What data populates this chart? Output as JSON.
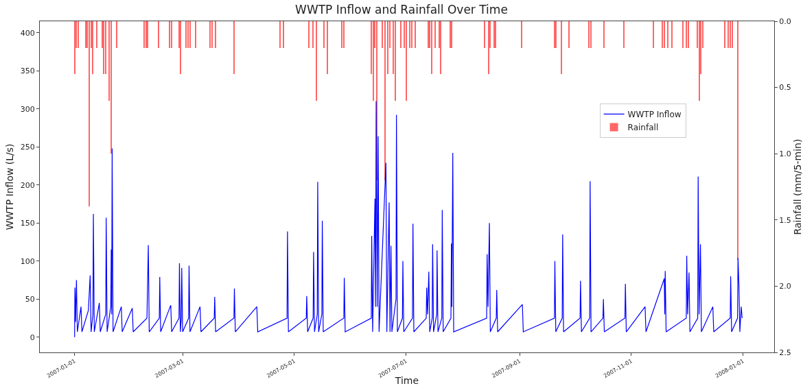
{
  "chart_data": {
    "type": "line",
    "title": "WWTP Inflow and Rainfall Over Time",
    "xlabel": "Time",
    "ylabel": "WWTP Inflow (L/s)",
    "y2label": "Rainfall (mm/5-min)",
    "xlim": [
      "2006-12-13",
      "2008-01-18"
    ],
    "xticks": [
      "2007-01-01",
      "2007-03-01",
      "2007-05-01",
      "2007-07-01",
      "2007-09-01",
      "2007-11-01",
      "2008-01-01"
    ],
    "ylim": [
      -20,
      415
    ],
    "yticks": [
      0,
      50,
      100,
      150,
      200,
      250,
      300,
      350,
      400
    ],
    "y2lim": [
      2.5,
      0
    ],
    "y2ticks": [
      {
        "value": 0,
        "label": "0.0"
      },
      {
        "value": 0.5,
        "label": "0.5"
      },
      {
        "value": 1,
        "label": "1.0"
      },
      {
        "value": 1.5,
        "label": "1.5"
      },
      {
        "value": 2,
        "label": "2.0"
      },
      {
        "value": 2.5,
        "label": "2.5"
      }
    ],
    "grid": false,
    "legend": "right",
    "marker": "none",
    "line_style": "solid",
    "series": [
      {
        "name": "WWTP Inflow",
        "color": "#0000ff",
        "x": [
          "2007-01-01T00:00",
          "2007-01-01T04:00",
          "2007-01-01T12:00",
          "2007-01-02T00:00",
          "2007-01-02T12:00",
          "2007-01-04T12:00",
          "2007-01-05T00:00",
          "2007-01-08T12:00",
          "2007-01-09T12:00",
          "2007-01-10T00:00",
          "2007-01-11T00:00",
          "2007-01-11T06:00",
          "2007-01-11T18:00",
          "2007-01-14T12:00",
          "2007-01-15T00:00",
          "2007-01-18T00:00",
          "2007-01-18T06:00",
          "2007-01-18T18:00",
          "2007-01-20T18:00",
          "2007-01-21T00:00",
          "2007-01-21T06:00",
          "2007-01-21T12:00",
          "2007-01-22T00:00",
          "2007-01-26T12:00",
          "2007-01-27T00:00",
          "2007-02-01T12:00",
          "2007-02-02T00:00",
          "2007-02-09T12:00",
          "2007-02-10T06:00",
          "2007-02-10T18:00",
          "2007-02-16T06:00",
          "2007-02-16T12:00",
          "2007-02-17T00:00",
          "2007-02-22T12:00",
          "2007-02-23T00:00",
          "2007-02-27T00:00",
          "2007-02-27T06:00",
          "2007-02-27T18:00",
          "2007-02-28T06:00",
          "2007-02-28T12:00",
          "2007-03-01T00:00",
          "2007-03-04T06:00",
          "2007-03-04T12:00",
          "2007-03-05T00:00",
          "2007-03-10T12:00",
          "2007-03-11T00:00",
          "2007-03-18T06:00",
          "2007-03-18T12:00",
          "2007-03-19T00:00",
          "2007-03-29T00:00",
          "2007-03-29T06:00",
          "2007-03-29T18:00",
          "2007-04-10T12:00",
          "2007-04-11T00:00",
          "2007-04-27T00:00",
          "2007-04-27T06:00",
          "2007-04-27T18:00",
          "2007-05-07T12:00",
          "2007-05-07T18:00",
          "2007-05-08T06:00",
          "2007-05-11T06:00",
          "2007-05-11T12:00",
          "2007-05-12T00:00",
          "2007-05-13T12:00",
          "2007-05-13T18:00",
          "2007-05-14T06:00",
          "2007-05-16T00:00",
          "2007-05-16T06:00",
          "2007-05-16T18:00",
          "2007-05-28T00:00",
          "2007-05-28T06:00",
          "2007-05-28T18:00",
          "2007-06-12T00:00",
          "2007-06-12T06:00",
          "2007-06-12T18:00",
          "2007-06-14T00:00",
          "2007-06-14T08:00",
          "2007-06-14T16:00",
          "2007-06-15T06:00",
          "2007-06-15T18:00",
          "2007-06-16T06:00",
          "2007-06-20T00:00",
          "2007-06-20T12:00",
          "2007-06-21T18:00",
          "2007-06-22T06:00",
          "2007-06-22T18:00",
          "2007-06-23T06:00",
          "2007-06-25T12:00",
          "2007-06-25T18:00",
          "2007-06-26T06:00",
          "2007-06-29T00:00",
          "2007-06-29T06:00",
          "2007-06-29T18:00",
          "2007-07-04T12:00",
          "2007-07-04T18:00",
          "2007-07-05T06:00",
          "2007-07-12T00:00",
          "2007-07-12T06:00",
          "2007-07-12T18:00",
          "2007-07-13T10:00",
          "2007-07-13T22:00",
          "2007-07-15T06:00",
          "2007-07-15T12:00",
          "2007-07-16T00:00",
          "2007-07-17T18:00",
          "2007-07-17T22:00",
          "2007-07-18T10:00",
          "2007-07-20T12:00",
          "2007-07-20T18:00",
          "2007-07-21T06:00",
          "2007-07-25T12:00",
          "2007-07-25T18:00",
          "2007-07-26T00:00",
          "2007-07-26T12:00",
          "2007-07-27T00:00",
          "2007-08-14T00:00",
          "2007-08-14T06:00",
          "2007-08-14T18:00",
          "2007-08-15T12:00",
          "2007-08-16T00:00",
          "2007-08-19T06:00",
          "2007-08-19T12:00",
          "2007-08-20T00:00",
          "2007-09-02T12:00",
          "2007-09-03T00:00",
          "2007-09-20T00:00",
          "2007-09-20T06:00",
          "2007-09-20T18:00",
          "2007-09-24T06:00",
          "2007-09-24T12:00",
          "2007-09-25T00:00",
          "2007-10-04T00:00",
          "2007-10-04T06:00",
          "2007-10-04T18:00",
          "2007-10-09T06:00",
          "2007-10-09T12:00",
          "2007-10-10T00:00",
          "2007-10-16T12:00",
          "2007-10-16T18:00",
          "2007-10-17T06:00",
          "2007-10-28T12:00",
          "2007-10-28T18:00",
          "2007-10-29T06:00",
          "2007-11-08T12:00",
          "2007-11-09T00:00",
          "2007-11-19T00:00",
          "2007-11-19T06:00",
          "2007-11-19T12:00",
          "2007-11-20T00:00",
          "2007-12-01T00:00",
          "2007-12-01T06:00",
          "2007-12-01T18:00",
          "2007-12-02T12:00",
          "2007-12-03T00:00",
          "2007-12-07T06:00",
          "2007-12-07T12:00",
          "2007-12-08T00:00",
          "2007-12-08T18:00",
          "2007-12-09T06:00",
          "2007-12-15T12:00",
          "2007-12-16T00:00",
          "2007-12-25T00:00",
          "2007-12-25T06:00",
          "2007-12-25T18:00",
          "2007-12-29T00:00",
          "2007-12-29T06:00",
          "2007-12-29T18:00",
          "2007-12-30T06:00",
          "2007-12-31T00:00",
          "2007-12-31T12:00"
        ],
        "values": [
          0,
          65,
          20,
          75,
          7,
          40,
          7,
          35,
          81,
          7,
          30,
          162,
          7,
          45,
          7,
          30,
          157,
          7,
          40,
          115,
          30,
          248,
          7,
          40,
          7,
          38,
          7,
          25,
          121,
          7,
          25,
          79,
          7,
          42,
          7,
          25,
          97,
          7,
          25,
          91,
          7,
          25,
          94,
          7,
          40,
          7,
          25,
          53,
          7,
          25,
          64,
          7,
          40,
          7,
          25,
          139,
          7,
          25,
          54,
          7,
          25,
          112,
          7,
          30,
          204,
          7,
          30,
          153,
          7,
          25,
          78,
          7,
          25,
          133,
          7,
          182,
          40,
          310,
          40,
          264,
          7,
          229,
          7,
          177,
          7,
          120,
          7,
          50,
          292,
          7,
          25,
          100,
          7,
          25,
          149,
          7,
          25,
          65,
          30,
          86,
          7,
          25,
          122,
          7,
          30,
          114,
          7,
          25,
          167,
          7,
          25,
          123,
          40,
          242,
          7,
          25,
          109,
          40,
          150,
          7,
          25,
          62,
          7,
          43,
          7,
          25,
          100,
          7,
          25,
          135,
          7,
          25,
          74,
          7,
          25,
          205,
          7,
          25,
          50,
          7,
          25,
          70,
          7,
          40,
          7,
          77,
          30,
          87,
          7,
          25,
          107,
          30,
          85,
          7,
          25,
          211,
          30,
          122,
          7,
          40,
          7,
          25,
          80,
          7,
          25,
          104,
          69,
          7,
          40,
          25
        ]
      },
      {
        "name": "Rainfall",
        "type": "bar",
        "axis": "y2",
        "color": "#ff6666",
        "x": [
          "2007-01-01",
          "2007-01-02",
          "2007-01-03",
          "2007-01-07",
          "2007-01-08",
          "2007-01-09",
          "2007-01-10",
          "2007-01-11",
          "2007-01-13",
          "2007-01-16",
          "2007-01-17",
          "2007-01-18",
          "2007-01-20",
          "2007-01-21",
          "2007-01-24",
          "2007-02-08",
          "2007-02-09",
          "2007-02-10",
          "2007-02-16",
          "2007-02-22",
          "2007-02-23",
          "2007-02-27",
          "2007-02-28",
          "2007-03-03",
          "2007-03-04",
          "2007-03-05",
          "2007-03-08",
          "2007-03-16",
          "2007-03-17",
          "2007-03-19",
          "2007-03-29",
          "2007-04-23",
          "2007-04-25",
          "2007-05-09",
          "2007-05-11",
          "2007-05-13",
          "2007-05-17",
          "2007-05-19",
          "2007-05-27",
          "2007-05-28",
          "2007-06-12",
          "2007-06-13",
          "2007-06-14",
          "2007-06-15",
          "2007-06-18",
          "2007-06-19T12:00",
          "2007-06-21",
          "2007-06-22",
          "2007-06-24",
          "2007-06-25",
          "2007-06-28",
          "2007-06-30",
          "2007-07-01",
          "2007-07-03",
          "2007-07-04",
          "2007-07-06",
          "2007-07-13",
          "2007-07-14",
          "2007-07-15",
          "2007-07-17",
          "2007-07-19",
          "2007-07-20",
          "2007-07-25",
          "2007-07-26",
          "2007-08-13",
          "2007-08-15",
          "2007-08-16",
          "2007-08-18",
          "2007-08-19",
          "2007-09-02",
          "2007-09-20",
          "2007-09-21",
          "2007-09-24",
          "2007-09-28",
          "2007-10-09",
          "2007-10-10",
          "2007-10-17",
          "2007-10-28",
          "2007-11-13",
          "2007-11-18",
          "2007-11-19",
          "2007-11-21",
          "2007-11-23",
          "2007-11-29",
          "2007-12-01",
          "2007-12-02",
          "2007-12-07",
          "2007-12-08",
          "2007-12-09",
          "2007-12-10",
          "2007-12-22",
          "2007-12-24",
          "2007-12-25",
          "2007-12-26",
          "2007-12-29"
        ],
        "values": [
          0.4,
          0.2,
          0.2,
          0.2,
          0.2,
          1.4,
          0.2,
          0.4,
          0.2,
          0.2,
          0.4,
          0.4,
          0.6,
          1.0,
          0.2,
          0.2,
          0.2,
          0.2,
          0.2,
          0.2,
          0.2,
          0.2,
          0.4,
          0.2,
          0.2,
          0.2,
          0.2,
          0.2,
          0.2,
          0.2,
          0.4,
          0.2,
          0.2,
          0.2,
          0.2,
          0.6,
          0.2,
          0.4,
          0.2,
          0.2,
          0.4,
          0.6,
          0.2,
          1.2,
          0.2,
          1.2,
          0.4,
          0.2,
          0.4,
          0.6,
          0.2,
          0.2,
          0.6,
          0.2,
          0.2,
          0.2,
          0.2,
          0.2,
          0.4,
          0.2,
          0.2,
          0.4,
          0.2,
          0.2,
          0.2,
          0.4,
          0.2,
          0.2,
          0.2,
          0.2,
          0.2,
          0.2,
          0.4,
          0.2,
          0.2,
          0.2,
          0.2,
          0.2,
          0.2,
          0.2,
          0.2,
          0.2,
          0.2,
          0.2,
          0.2,
          0.2,
          0.2,
          0.6,
          0.4,
          0.2,
          0.2,
          0.2,
          0.2,
          0.2,
          1.8
        ]
      }
    ]
  }
}
